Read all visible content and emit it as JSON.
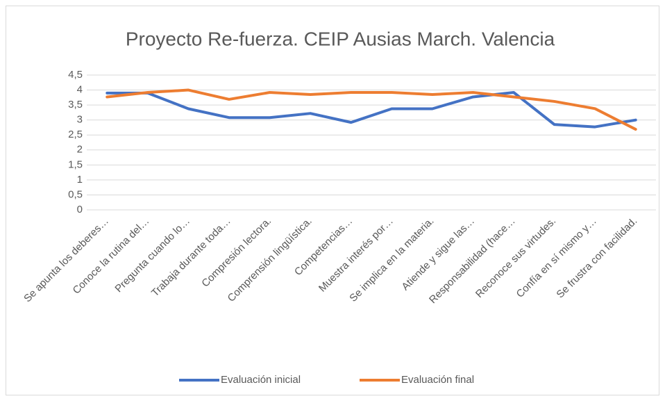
{
  "chart_data": {
    "type": "line",
    "title": "Proyecto Re-fuerza. CEIP Ausias March. Valencia",
    "categories": [
      "Se apunta los deberes…",
      "Conoce la rutina del…",
      "Pregunta cuando lo…",
      "Trabaja durante toda…",
      "Compresión lectora.",
      "Comprensión lingüística.",
      "Competencias…",
      "Muestra interés por…",
      "Se implica en la materia.",
      "Atiende y sigue las…",
      "Responsabilidad (hace…",
      "Reconoce sus virtudes.",
      "Confía en sí mismo y…",
      "Se frustra con facilidad."
    ],
    "series": [
      {
        "name": "Evaluación inicial",
        "color": "#4472c4",
        "values": [
          3.9,
          3.9,
          3.375,
          3.08,
          3.08,
          3.22,
          2.92,
          3.375,
          3.375,
          3.77,
          3.92,
          2.85,
          2.77,
          3.0
        ]
      },
      {
        "name": "Evaluación final",
        "color": "#ed7d31",
        "values": [
          3.77,
          3.92,
          4.0,
          3.69,
          3.92,
          3.85,
          3.92,
          3.92,
          3.85,
          3.92,
          3.77,
          3.62,
          3.38,
          2.69
        ]
      }
    ],
    "ylim": [
      0,
      4.5
    ],
    "yticks": [
      0,
      {
        "value": 0.5,
        "label": "0,5"
      },
      1,
      {
        "value": 1.5,
        "label": "1,5"
      },
      2,
      {
        "value": 2.5,
        "label": "2,5"
      },
      3,
      {
        "value": 3.5,
        "label": "3,5"
      },
      4,
      {
        "value": 4.5,
        "label": "4,5"
      }
    ],
    "grid": true,
    "legend": "bottom"
  }
}
